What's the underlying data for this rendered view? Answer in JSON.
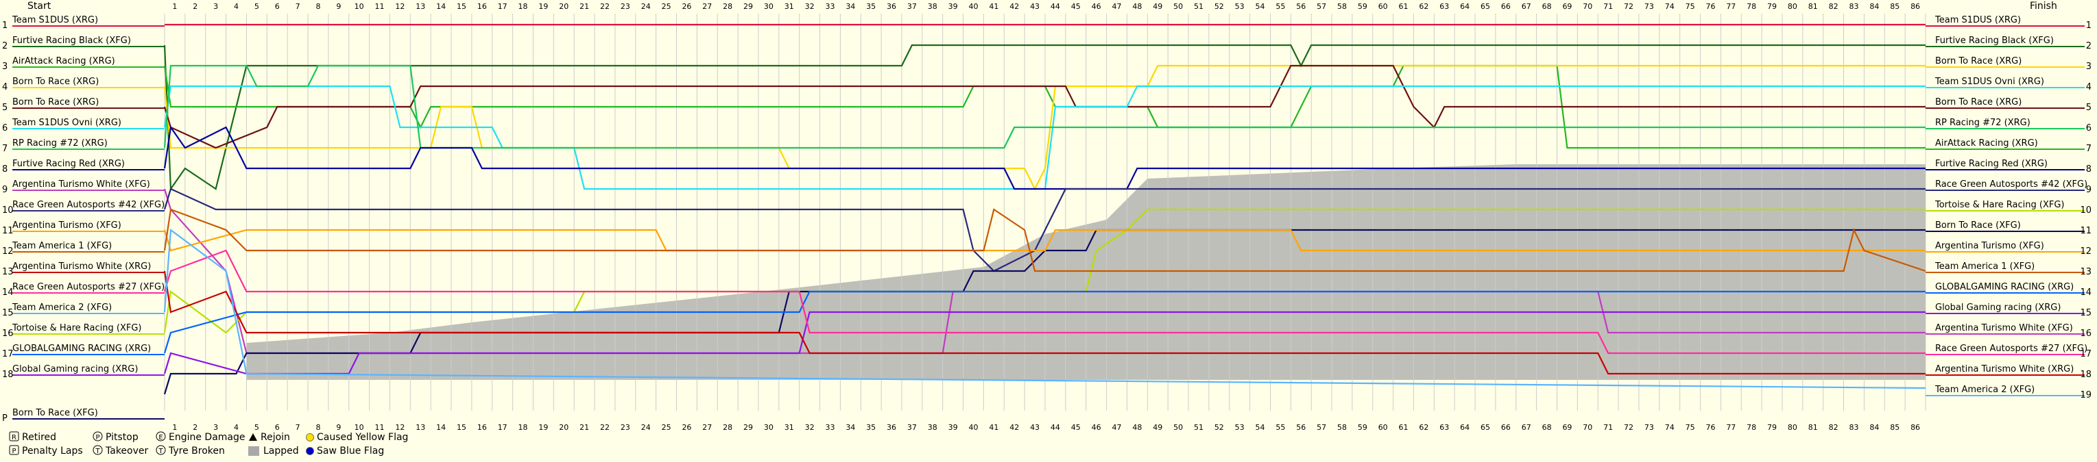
{
  "chart_data": {
    "type": "line",
    "header": {
      "start": "Start",
      "finish": "Finish"
    },
    "laps": 86,
    "positions": [
      "1",
      "2",
      "3",
      "4",
      "5",
      "6",
      "7",
      "8",
      "9",
      "10",
      "11",
      "12",
      "13",
      "14",
      "15",
      "16",
      "17",
      "18",
      "P"
    ],
    "finish_positions": [
      "1",
      "2",
      "3",
      "4",
      "5",
      "6",
      "7",
      "8",
      "9",
      "10",
      "11",
      "12",
      "13",
      "14",
      "15",
      "16",
      "17",
      "18",
      "19"
    ],
    "start_grid": [
      "Team S1DUS (XRG)",
      "Furtive Racing Black (XFG)",
      "AirAttack Racing (XRG)",
      "Born To Race (XRG)",
      "Born To Race (XRG)",
      "Team S1DUS Ovni (XRG)",
      "RP Racing #72 (XRG)",
      "Furtive Racing Red (XRG)",
      "Argentina Turismo White (XFG)",
      "Race Green Autosports #42 (XFG)",
      "Argentina Turismo (XFG)",
      "Team America 1 (XFG)",
      "Argentina Turismo White (XRG)",
      "Race Green Autosports #27 (XFG)",
      "Team America 2 (XFG)",
      "Tortoise & Hare Racing (XFG)",
      "GLOBALGAMING RACING (XRG)",
      "Global Gaming racing (XRG)",
      "Born To Race (XFG)"
    ],
    "finish_order": [
      "Team S1DUS (XRG)",
      "Furtive Racing Black (XFG)",
      "Born To Race (XRG)",
      "Team S1DUS Ovni (XRG)",
      "Born To Race (XRG)",
      "RP Racing #72 (XRG)",
      "AirAttack Racing (XRG)",
      "Furtive Racing Red (XRG)",
      "Race Green Autosports #42 (XFG)",
      "Tortoise & Hare Racing (XFG)",
      "Born To Race (XFG)",
      "Argentina Turismo (XFG)",
      "Team America 1 (XFG)",
      "GLOBALGAMING RACING (XRG)",
      "Global Gaming racing (XRG)",
      "Argentina Turismo White (XFG)",
      "Race Green Autosports #27 (XFG)",
      "Argentina Turismo White (XRG)",
      "Team America 2 (XFG)"
    ],
    "series": [
      {
        "name": "Team S1DUS (XRG)",
        "color": "#E0103C",
        "start": 1,
        "finish": 1,
        "path": [
          [
            0,
            1
          ],
          [
            86,
            1
          ]
        ]
      },
      {
        "name": "Furtive Racing Black (XFG)",
        "color": "#1A6B1A",
        "start": 2,
        "finish": 2,
        "path": [
          [
            0,
            2
          ],
          [
            0.3,
            9
          ],
          [
            1,
            8
          ],
          [
            2.5,
            9
          ],
          [
            4,
            3
          ],
          [
            36,
            3
          ],
          [
            36.5,
            2
          ],
          [
            55,
            2
          ],
          [
            55.5,
            3
          ],
          [
            56,
            2
          ],
          [
            86,
            2
          ]
        ]
      },
      {
        "name": "AirAttack Racing (XRG)",
        "color": "#22B822",
        "start": 3,
        "finish": 7,
        "path": [
          [
            0,
            3
          ],
          [
            0.3,
            5
          ],
          [
            12,
            5
          ],
          [
            12.5,
            6
          ],
          [
            13,
            5
          ],
          [
            39,
            5
          ],
          [
            39.5,
            4
          ],
          [
            43,
            4
          ],
          [
            43.5,
            5
          ],
          [
            48,
            5
          ],
          [
            48.5,
            6
          ],
          [
            55,
            6
          ],
          [
            55.5,
            5
          ],
          [
            56,
            4
          ],
          [
            60,
            4
          ],
          [
            60.5,
            3
          ],
          [
            68,
            3
          ],
          [
            68.5,
            7
          ],
          [
            86,
            7
          ]
        ]
      },
      {
        "name": "Born To Race (XRG)",
        "color": "#FFD700",
        "start": 4,
        "finish": 3,
        "path": [
          [
            0,
            4
          ],
          [
            0.3,
            7
          ],
          [
            13,
            7
          ],
          [
            13.5,
            5
          ],
          [
            15,
            5
          ],
          [
            15.5,
            7
          ],
          [
            30,
            7
          ],
          [
            30.5,
            8
          ],
          [
            42,
            8
          ],
          [
            42.5,
            9
          ],
          [
            43,
            8
          ],
          [
            43.5,
            4
          ],
          [
            48,
            4
          ],
          [
            48.5,
            3
          ],
          [
            86,
            3
          ]
        ]
      },
      {
        "name": "Born To Race (XRG)",
        "color": "#6E1010",
        "start": 5,
        "finish": 5,
        "path": [
          [
            0,
            5
          ],
          [
            0.3,
            6
          ],
          [
            2.5,
            7
          ],
          [
            5,
            6
          ],
          [
            5.5,
            5
          ],
          [
            12,
            5
          ],
          [
            12.5,
            4
          ],
          [
            44,
            4
          ],
          [
            44.5,
            5
          ],
          [
            54,
            5
          ],
          [
            54.5,
            4
          ],
          [
            55,
            3
          ],
          [
            60,
            3
          ],
          [
            60.5,
            4
          ],
          [
            61,
            5
          ],
          [
            62,
            6
          ],
          [
            62.5,
            5
          ],
          [
            86,
            5
          ]
        ]
      },
      {
        "name": "Team S1DUS Ovni (XRG)",
        "color": "#1EE0F0",
        "start": 6,
        "finish": 4,
        "path": [
          [
            0,
            6
          ],
          [
            0.3,
            4
          ],
          [
            11,
            4
          ],
          [
            11.5,
            6
          ],
          [
            16,
            6
          ],
          [
            16.5,
            7
          ],
          [
            20,
            7
          ],
          [
            20.5,
            9
          ],
          [
            43,
            9
          ],
          [
            43.5,
            5
          ],
          [
            47,
            5
          ],
          [
            47.5,
            4
          ],
          [
            86,
            4
          ]
        ]
      },
      {
        "name": "RP Racing #72 (XRG)",
        "color": "#18C85A",
        "start": 7,
        "finish": 6,
        "path": [
          [
            0,
            7
          ],
          [
            0.3,
            3
          ],
          [
            4,
            3
          ],
          [
            4.5,
            4
          ],
          [
            7,
            4
          ],
          [
            7.5,
            3
          ],
          [
            12,
            3
          ],
          [
            12.5,
            7
          ],
          [
            41,
            7
          ],
          [
            41.5,
            6
          ],
          [
            86,
            6
          ]
        ]
      },
      {
        "name": "Furtive Racing Red (XRG)",
        "color": "#0000A0",
        "start": 8,
        "finish": 8,
        "path": [
          [
            0,
            8
          ],
          [
            0.3,
            6
          ],
          [
            1,
            7
          ],
          [
            3,
            6
          ],
          [
            4,
            8
          ],
          [
            12,
            8
          ],
          [
            12.5,
            7
          ],
          [
            15,
            7
          ],
          [
            15.5,
            8
          ],
          [
            41,
            8
          ],
          [
            41.5,
            9
          ],
          [
            47,
            9
          ],
          [
            47.5,
            8
          ],
          [
            86,
            8
          ]
        ]
      },
      {
        "name": "Argentina Turismo White (XFG)",
        "color": "#C03CC0",
        "start": 9,
        "finish": 16,
        "path": [
          [
            0,
            9
          ],
          [
            0.3,
            10
          ],
          [
            3,
            13
          ],
          [
            4,
            17
          ],
          [
            38,
            17
          ],
          [
            38.5,
            14
          ],
          [
            70,
            14
          ],
          [
            70.5,
            16
          ],
          [
            86,
            16
          ]
        ]
      },
      {
        "name": "Race Green Autosports #42 (XFG)",
        "color": "#28287A",
        "start": 10,
        "finish": 9,
        "path": [
          [
            0,
            10
          ],
          [
            0.3,
            9
          ],
          [
            2.5,
            10
          ],
          [
            4,
            10
          ],
          [
            39,
            10
          ],
          [
            39.5,
            12
          ],
          [
            40.5,
            13
          ],
          [
            42.5,
            12
          ],
          [
            44,
            9
          ],
          [
            86,
            9
          ]
        ]
      },
      {
        "name": "Tortoise & Hare Racing (XFG)",
        "color": "#B4E000",
        "start": 16,
        "finish": 10,
        "path": [
          [
            0,
            16
          ],
          [
            0.3,
            14
          ],
          [
            3,
            16
          ],
          [
            4,
            15
          ],
          [
            20,
            15
          ],
          [
            20.5,
            14
          ],
          [
            45,
            14
          ],
          [
            45.5,
            12
          ],
          [
            47,
            11
          ],
          [
            48,
            10
          ],
          [
            86,
            10
          ]
        ]
      },
      {
        "name": "Born To Race (XFG)",
        "color": "#0A0A60",
        "start": 19,
        "finish": 11,
        "path": [
          [
            0,
            19
          ],
          [
            0.3,
            18
          ],
          [
            3.5,
            18
          ],
          [
            4,
            17
          ],
          [
            12,
            17
          ],
          [
            12.5,
            16
          ],
          [
            30,
            16
          ],
          [
            30.5,
            14
          ],
          [
            39,
            14
          ],
          [
            39.5,
            13
          ],
          [
            42,
            13
          ],
          [
            43,
            12
          ],
          [
            45,
            12
          ],
          [
            45.5,
            11
          ],
          [
            86,
            11
          ]
        ]
      },
      {
        "name": "Argentina Turismo (XFG)",
        "color": "#FFA500",
        "start": 11,
        "finish": 12,
        "path": [
          [
            0,
            11
          ],
          [
            0.3,
            12
          ],
          [
            4,
            11
          ],
          [
            24,
            11
          ],
          [
            24.5,
            12
          ],
          [
            43,
            12
          ],
          [
            43.5,
            11
          ],
          [
            55,
            11
          ],
          [
            55.5,
            12
          ],
          [
            86,
            12
          ]
        ]
      },
      {
        "name": "Team America 1 (XFG)",
        "color": "#C85A00",
        "start": 12,
        "finish": 13,
        "path": [
          [
            0,
            12
          ],
          [
            0.3,
            10
          ],
          [
            3,
            11
          ],
          [
            4,
            12
          ],
          [
            40,
            12
          ],
          [
            40.5,
            10
          ],
          [
            42,
            11
          ],
          [
            42.5,
            13
          ],
          [
            82,
            13
          ],
          [
            82.5,
            11
          ],
          [
            83,
            12
          ],
          [
            86,
            13
          ]
        ]
      },
      {
        "name": "GLOBALGAMING RACING (XRG)",
        "color": "#0064FF",
        "start": 17,
        "finish": 14,
        "path": [
          [
            0,
            17
          ],
          [
            0.3,
            16
          ],
          [
            4,
            15
          ],
          [
            31,
            15
          ],
          [
            31.5,
            14
          ],
          [
            86,
            14
          ]
        ]
      },
      {
        "name": "Global Gaming racing (XRG)",
        "color": "#8C14E6",
        "start": 18,
        "finish": 15,
        "path": [
          [
            0,
            18
          ],
          [
            0.3,
            17
          ],
          [
            4,
            18
          ],
          [
            9,
            18
          ],
          [
            9.5,
            17
          ],
          [
            31,
            17
          ],
          [
            31.5,
            15
          ],
          [
            86,
            15
          ]
        ]
      },
      {
        "name": "Race Green Autosports #27 (XFG)",
        "color": "#FF2D9B",
        "start": 14,
        "finish": 17,
        "path": [
          [
            0,
            14
          ],
          [
            0.3,
            13
          ],
          [
            3,
            12
          ],
          [
            4,
            14
          ],
          [
            31,
            14
          ],
          [
            31.5,
            16
          ],
          [
            70,
            16
          ],
          [
            70.5,
            17
          ],
          [
            86,
            17
          ]
        ]
      },
      {
        "name": "Argentina Turismo White (XRG)",
        "color": "#C80000",
        "start": 13,
        "finish": 18,
        "path": [
          [
            0,
            13
          ],
          [
            0.3,
            15
          ],
          [
            3,
            14
          ],
          [
            4,
            16
          ],
          [
            31,
            16
          ],
          [
            31.5,
            17
          ],
          [
            70,
            17
          ],
          [
            70.5,
            18
          ],
          [
            86,
            18
          ]
        ]
      },
      {
        "name": "Team America 2 (XFG)",
        "color": "#5AB4FF",
        "start": 15,
        "finish": 19,
        "path": [
          [
            0,
            15
          ],
          [
            0.3,
            11
          ],
          [
            3,
            13
          ],
          [
            4,
            18
          ],
          [
            86,
            18.7
          ]
        ]
      }
    ],
    "lapped_region": [
      [
        4,
        16.5
      ],
      [
        11,
        16
      ],
      [
        15,
        15.5
      ],
      [
        31,
        13.8
      ],
      [
        40,
        12.8
      ],
      [
        43,
        11.2
      ],
      [
        46,
        10.5
      ],
      [
        48,
        8.5
      ],
      [
        60,
        8
      ],
      [
        66,
        7.8
      ],
      [
        86,
        7.8
      ]
    ],
    "legend": [
      {
        "key": "retired",
        "symbol": "R",
        "label": "Retired"
      },
      {
        "key": "penalty",
        "symbol": "P",
        "label": "Penalty Laps"
      },
      {
        "key": "pitstop",
        "symbol": "P",
        "label": "Pitstop"
      },
      {
        "key": "takeover",
        "symbol": "T",
        "label": "Takeover"
      },
      {
        "key": "engine",
        "symbol": "E",
        "label": "Engine Damage"
      },
      {
        "key": "tyre",
        "symbol": "T",
        "label": "Tyre Broken"
      },
      {
        "key": "rejoin",
        "symbol": "▲",
        "label": "Rejoin"
      },
      {
        "key": "lapped",
        "symbol": "",
        "label": "Lapped"
      },
      {
        "key": "yellow",
        "symbol": "●",
        "label": "Caused Yellow Flag"
      },
      {
        "key": "blue",
        "symbol": "●",
        "label": "Saw Blue Flag"
      }
    ],
    "colors": {
      "background": "#FFFFE8",
      "grid": "#CCCCCC",
      "lapped": "#A9A9A9",
      "yellow_flag": "#FFE000",
      "blue_flag": "#0000CC"
    }
  }
}
